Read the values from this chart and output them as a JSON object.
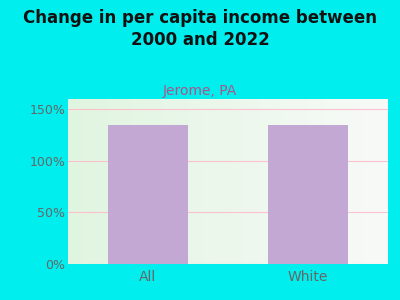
{
  "title": "Change in per capita income between\n2000 and 2022",
  "subtitle": "Jerome, PA",
  "categories": [
    "All",
    "White"
  ],
  "values": [
    135,
    135
  ],
  "bar_color": "#c4a8d4",
  "title_fontsize": 12,
  "subtitle_fontsize": 10,
  "subtitle_color": "#aa5588",
  "title_color": "#111111",
  "tick_label_color": "#666666",
  "background_color": "#00eeee",
  "ylim": [
    0,
    160
  ],
  "yticks": [
    0,
    50,
    100,
    150
  ],
  "ytick_labels": [
    "0%",
    "50%",
    "100%",
    "150%"
  ],
  "gridline_color": "#ffbbcc",
  "gridline_alpha": 0.9,
  "bar_width": 0.5,
  "plot_left_color": "#e0f5e0",
  "plot_right_color": "#f8faf8"
}
